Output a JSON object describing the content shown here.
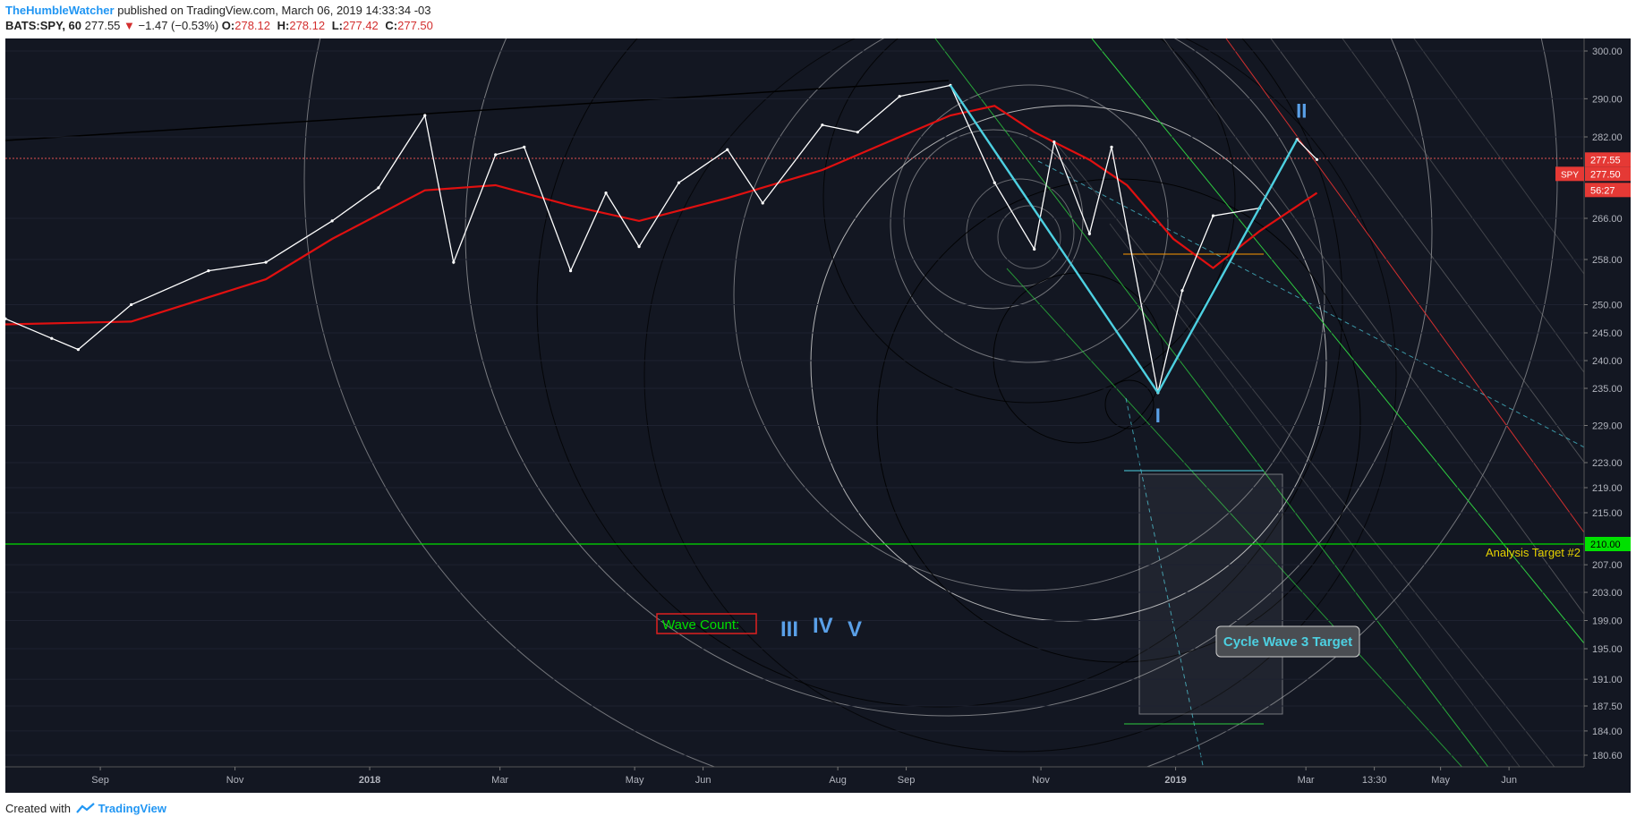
{
  "header": {
    "author": "TheHumbleWatcher",
    "published_text": "published on TradingView.com, March 06, 2019 14:33:34 -03",
    "symbol": "BATS:SPY, 60",
    "last": "277.55",
    "change_arrow": "▼",
    "change": "−1.47 (−0.53%)",
    "open_label": "O:",
    "open": "278.12",
    "high_label": "H:",
    "high": "278.12",
    "low_label": "L:",
    "low": "277.42",
    "close_label": "C:",
    "close": "277.50"
  },
  "footer": {
    "created_with": "Created with",
    "brand": "TradingView"
  },
  "colors": {
    "background": "#131722",
    "price_line": "#ffffff",
    "ma_line": "#e01010",
    "wave_lines": "#4dd0e1",
    "target_line": "#00e000",
    "axis_text": "#b2b5be",
    "wave_label": "#5aa0e8"
  },
  "chart_data": {
    "type": "line",
    "title": "",
    "y_ticks": [
      300.0,
      290.0,
      282.0,
      266.0,
      258.0,
      250.0,
      245.0,
      240.0,
      235.0,
      229.0,
      223.0,
      219.0,
      215.0,
      207.0,
      203.0,
      199.0,
      195.0,
      191.0,
      187.5,
      184.0,
      180.6
    ],
    "y_range": [
      178,
      302
    ],
    "x_labels": [
      "Sep",
      "Nov",
      "2018",
      "Mar",
      "May",
      "Jun",
      "Aug",
      "Sep",
      "Nov",
      "2019",
      "Mar",
      "13:30",
      "May",
      "Jun"
    ],
    "price_tags": [
      {
        "label": "",
        "value": "277.55"
      },
      {
        "label": "SPY",
        "value": "277.50"
      },
      {
        "label": "",
        "value": "56:27"
      },
      {
        "label": "",
        "value": "210.00"
      }
    ],
    "series": [
      {
        "name": "SPY",
        "values": [
          {
            "date": "2017-07-20",
            "y": 247.5
          },
          {
            "date": "2017-08-10",
            "y": 244.0
          },
          {
            "date": "2017-08-22",
            "y": 242.0
          },
          {
            "date": "2017-09-15",
            "y": 250.0
          },
          {
            "date": "2017-10-20",
            "y": 256.0
          },
          {
            "date": "2017-11-15",
            "y": 257.5
          },
          {
            "date": "2017-12-15",
            "y": 265.5
          },
          {
            "date": "2018-01-05",
            "y": 272.0
          },
          {
            "date": "2018-01-26",
            "y": 286.5
          },
          {
            "date": "2018-02-08",
            "y": 257.5
          },
          {
            "date": "2018-02-27",
            "y": 278.5
          },
          {
            "date": "2018-03-12",
            "y": 280.0
          },
          {
            "date": "2018-04-02",
            "y": 256.0
          },
          {
            "date": "2018-04-18",
            "y": 271.0
          },
          {
            "date": "2018-05-03",
            "y": 260.5
          },
          {
            "date": "2018-05-21",
            "y": 273.0
          },
          {
            "date": "2018-06-12",
            "y": 279.5
          },
          {
            "date": "2018-06-28",
            "y": 269.0
          },
          {
            "date": "2018-07-25",
            "y": 284.5
          },
          {
            "date": "2018-08-10",
            "y": 283.0
          },
          {
            "date": "2018-08-29",
            "y": 290.5
          },
          {
            "date": "2018-09-21",
            "y": 292.8
          },
          {
            "date": "2018-10-11",
            "y": 273.0
          },
          {
            "date": "2018-10-29",
            "y": 260.0
          },
          {
            "date": "2018-11-07",
            "y": 281.0
          },
          {
            "date": "2018-11-23",
            "y": 263.0
          },
          {
            "date": "2018-12-03",
            "y": 280.0
          },
          {
            "date": "2018-12-24",
            "y": 234.3
          },
          {
            "date": "2019-01-04",
            "y": 252.5
          },
          {
            "date": "2019-01-18",
            "y": 266.5
          },
          {
            "date": "2019-02-08",
            "y": 268.0
          },
          {
            "date": "2019-02-25",
            "y": 281.5
          },
          {
            "date": "2019-03-06",
            "y": 277.55
          }
        ]
      },
      {
        "name": "",
        "values": [
          {
            "date": "2017-07-20",
            "y": 246.5
          },
          {
            "date": "2017-09-15",
            "y": 247.0
          },
          {
            "date": "2017-11-15",
            "y": 254.5
          },
          {
            "date": "2017-12-15",
            "y": 262.0
          },
          {
            "date": "2018-01-26",
            "y": 271.5
          },
          {
            "date": "2018-02-27",
            "y": 272.5
          },
          {
            "date": "2018-04-02",
            "y": 268.5
          },
          {
            "date": "2018-05-03",
            "y": 265.5
          },
          {
            "date": "2018-06-12",
            "y": 270.0
          },
          {
            "date": "2018-07-25",
            "y": 275.5
          },
          {
            "date": "2018-08-29",
            "y": 282.0
          },
          {
            "date": "2018-09-21",
            "y": 286.5
          },
          {
            "date": "2018-10-11",
            "y": 288.5
          },
          {
            "date": "2018-10-29",
            "y": 283.0
          },
          {
            "date": "2018-11-23",
            "y": 277.5
          },
          {
            "date": "2018-12-10",
            "y": 272.5
          },
          {
            "date": "2018-12-31",
            "y": 262.0
          },
          {
            "date": "2019-01-18",
            "y": 256.5
          },
          {
            "date": "2019-02-08",
            "y": 263.5
          },
          {
            "date": "2019-03-06",
            "y": 271.0
          }
        ]
      }
    ],
    "annotations": {
      "wave_labels": [
        {
          "text": "I",
          "date": "2018-12-24",
          "y": 229.5
        },
        {
          "text": "II",
          "date": "2019-02-27",
          "y": 286.0
        }
      ],
      "wave_count_label": "Wave Count:",
      "wave_count_numerals": [
        "III",
        "IV",
        "V"
      ],
      "target_box_label": "Cycle Wave 3 Target",
      "target_line_label": "Analysis Target #2",
      "target_line_value": 210.0
    }
  }
}
